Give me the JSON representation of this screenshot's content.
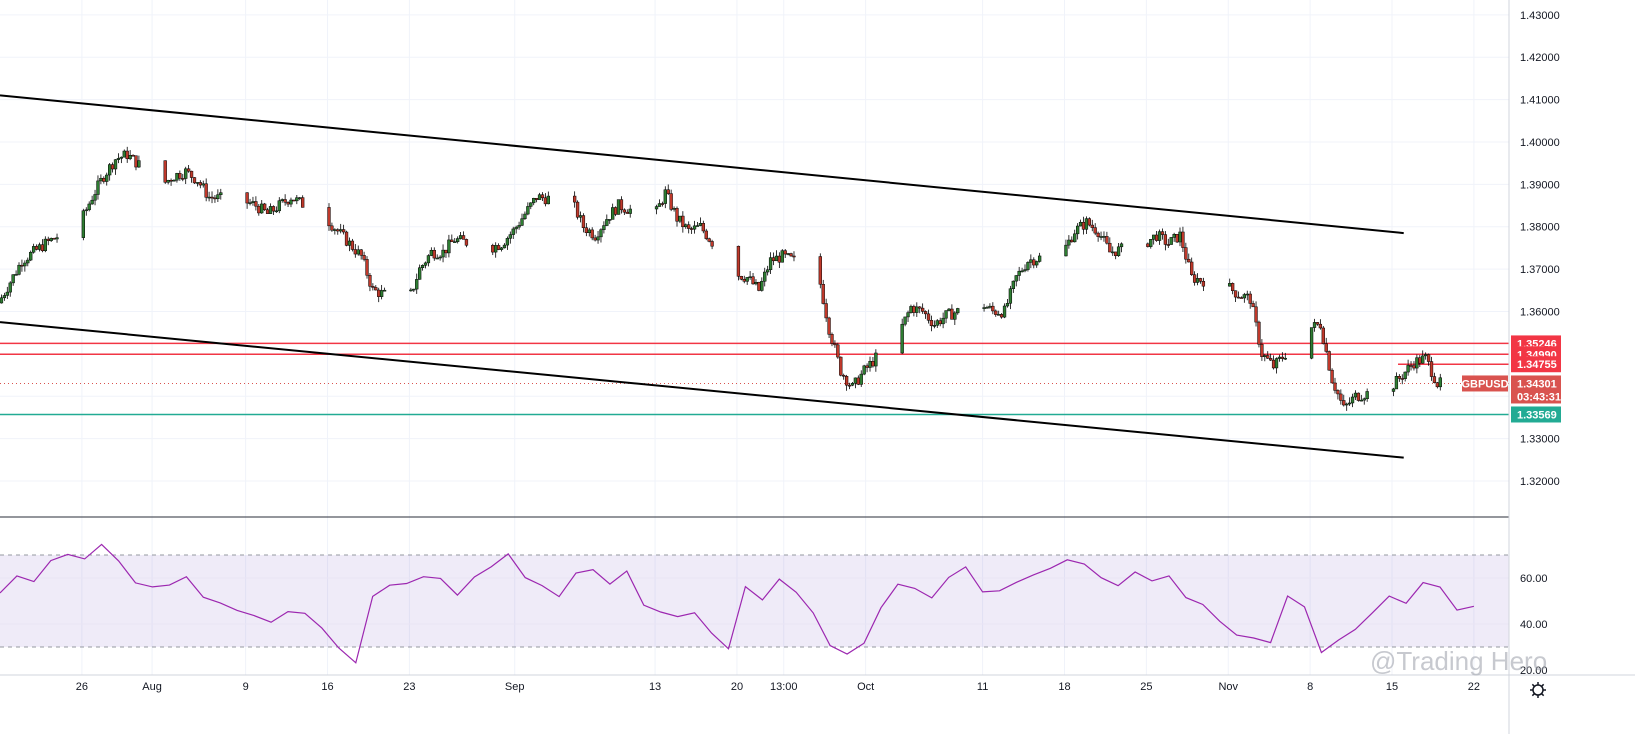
{
  "chart_data": {
    "type": "candlestick",
    "symbol": "GBPUSD",
    "countdown": "03:43:31",
    "watermark": "@Trading Hero",
    "price_axis": {
      "min": 1.3115,
      "max": 1.4335,
      "ticks": [
        "1.43000",
        "1.42000",
        "1.41000",
        "1.40000",
        "1.39000",
        "1.38000",
        "1.37000",
        "1.36000",
        "1.35000",
        "1.34000",
        "1.33000",
        "1.32000"
      ]
    },
    "time_axis": {
      "labels": [
        "26",
        "Aug",
        "9",
        "16",
        "23",
        "Sep",
        "13",
        "20",
        "13:00",
        "Oct",
        "11",
        "18",
        "25",
        "Nov",
        "8",
        "15",
        "22"
      ]
    },
    "horizontal_levels": [
      {
        "price": 1.35246,
        "label": "1.35246",
        "color": "#f23645"
      },
      {
        "price": 1.3499,
        "label": "1.34990",
        "color": "#f23645"
      },
      {
        "price": 1.34755,
        "label": "1.34755",
        "color": "#f23645"
      },
      {
        "price": 1.33569,
        "label": "1.33569",
        "color": "#22ab94"
      }
    ],
    "last_price": {
      "price": 1.34301,
      "label": "1.34301",
      "color": "#d9534f"
    },
    "channel": {
      "upper": {
        "start": [
          "Jul 19",
          1.411
        ],
        "end": [
          "Nov 16",
          1.3785
        ]
      },
      "lower": {
        "start": [
          "Jul 19",
          1.3575
        ],
        "end": [
          "Nov 16",
          1.3255
        ]
      }
    },
    "price_path": [
      [
        "Jul 19",
        1.362
      ],
      [
        "Jul 21",
        1.372
      ],
      [
        "Jul 23",
        1.376
      ],
      [
        "Jul 26",
        1.381
      ],
      [
        "Jul 27",
        1.387
      ],
      [
        "Jul 28",
        1.392
      ],
      [
        "Jul 29",
        1.396
      ],
      [
        "Jul 30",
        1.397
      ],
      [
        "Aug 2",
        1.39
      ],
      [
        "Aug 3",
        1.392
      ],
      [
        "Aug 4",
        1.393
      ],
      [
        "Aug 5",
        1.391
      ],
      [
        "Aug 6",
        1.387
      ],
      [
        "Aug 9",
        1.386
      ],
      [
        "Aug 10",
        1.385
      ],
      [
        "Aug 11",
        1.383
      ],
      [
        "Aug 12",
        1.385
      ],
      [
        "Aug 13",
        1.387
      ],
      [
        "Aug 16",
        1.382
      ],
      [
        "Aug 17",
        1.379
      ],
      [
        "Aug 18",
        1.376
      ],
      [
        "Aug 19",
        1.373
      ],
      [
        "Aug 20",
        1.365
      ],
      [
        "Aug 23",
        1.362
      ],
      [
        "Aug 24",
        1.37
      ],
      [
        "Aug 25",
        1.374
      ],
      [
        "Aug 26",
        1.374
      ],
      [
        "Aug 27",
        1.377
      ],
      [
        "Aug 30",
        1.375
      ],
      [
        "Aug 31",
        1.376
      ],
      [
        "Sep 1",
        1.379
      ],
      [
        "Sep 2",
        1.383
      ],
      [
        "Sep 3",
        1.387
      ],
      [
        "Sep 6",
        1.386
      ],
      [
        "Sep 7",
        1.38
      ],
      [
        "Sep 8",
        1.378
      ],
      [
        "Sep 9",
        1.382
      ],
      [
        "Sep 10",
        1.385
      ],
      [
        "Sep 13",
        1.382
      ],
      [
        "Sep 14",
        1.388
      ],
      [
        "Sep 15",
        1.382
      ],
      [
        "Sep 16",
        1.379
      ],
      [
        "Sep 17",
        1.38
      ],
      [
        "Sep 20",
        1.369
      ],
      [
        "Sep 21",
        1.368
      ],
      [
        "Sep 22",
        1.365
      ],
      [
        "Sep 23",
        1.372
      ],
      [
        "Sep 24",
        1.373
      ],
      [
        "Sep 27",
        1.37
      ],
      [
        "Sep 28",
        1.356
      ],
      [
        "Sep 29",
        1.346
      ],
      [
        "Sep 30",
        1.342
      ],
      [
        "Oct 1",
        1.346
      ],
      [
        "Oct 4",
        1.355
      ],
      [
        "Oct 5",
        1.361
      ],
      [
        "Oct 6",
        1.36
      ],
      [
        "Oct 7",
        1.357
      ],
      [
        "Oct 8",
        1.359
      ],
      [
        "Oct 11",
        1.362
      ],
      [
        "Oct 12",
        1.36
      ],
      [
        "Oct 13",
        1.36
      ],
      [
        "Oct 14",
        1.368
      ],
      [
        "Oct 15",
        1.372
      ],
      [
        "Oct 18",
        1.374
      ],
      [
        "Oct 19",
        1.379
      ],
      [
        "Oct 20",
        1.381
      ],
      [
        "Oct 21",
        1.379
      ],
      [
        "Oct 22",
        1.374
      ],
      [
        "Oct 25",
        1.376
      ],
      [
        "Oct 26",
        1.378
      ],
      [
        "Oct 27",
        1.376
      ],
      [
        "Oct 28",
        1.378
      ],
      [
        "Oct 29",
        1.368
      ],
      [
        "Nov 1",
        1.366
      ],
      [
        "Nov 2",
        1.364
      ],
      [
        "Nov 3",
        1.363
      ],
      [
        "Nov 4",
        1.35
      ],
      [
        "Nov 5",
        1.347
      ],
      [
        "Nov 8",
        1.356
      ],
      [
        "Nov 9",
        1.357
      ],
      [
        "Nov 10",
        1.344
      ],
      [
        "Nov 11",
        1.337
      ],
      [
        "Nov 12",
        1.34
      ],
      [
        "Nov 15",
        1.342
      ],
      [
        "Nov 16",
        1.345
      ],
      [
        "Nov 17",
        1.348
      ],
      [
        "Nov 18",
        1.349
      ],
      [
        "Nov 19",
        1.343
      ]
    ],
    "rsi": {
      "levels": {
        "upper": 70,
        "lower": 30
      },
      "range": [
        20,
        80
      ],
      "ticks": [
        "60.00",
        "40.00"
      ],
      "partial_tick": "20.00",
      "values": [
        52,
        60,
        58,
        65,
        70,
        68,
        72,
        66,
        55,
        58,
        56,
        62,
        54,
        48,
        44,
        46,
        42,
        48,
        44,
        36,
        30,
        26,
        50,
        58,
        56,
        60,
        62,
        54,
        60,
        66,
        68,
        62,
        58,
        54,
        60,
        64,
        58,
        66,
        50,
        48,
        46,
        42,
        36,
        30,
        58,
        52,
        60,
        55,
        44,
        30,
        26,
        34,
        48,
        56,
        58,
        54,
        58,
        62,
        56,
        54,
        60,
        64,
        66,
        70,
        68,
        62,
        58,
        60,
        56,
        58,
        50,
        46,
        40,
        38,
        34,
        30,
        54,
        50,
        26,
        32,
        40,
        42,
        50,
        52,
        56,
        58,
        48,
        46
      ]
    }
  }
}
